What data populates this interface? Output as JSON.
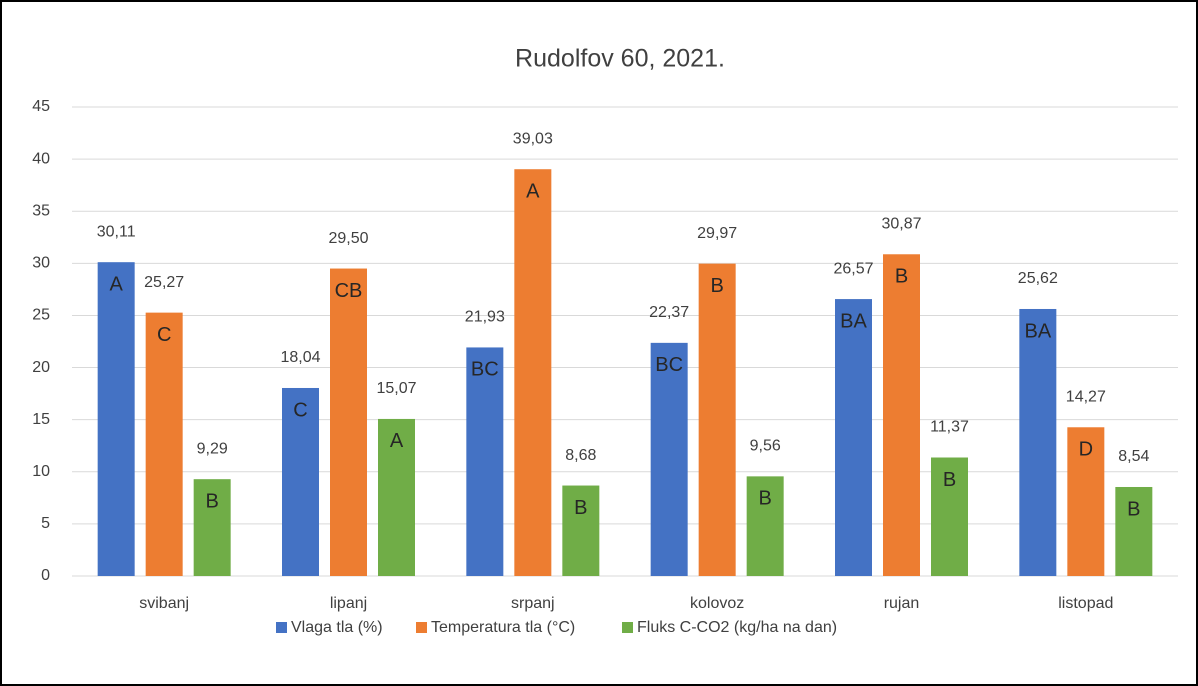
{
  "chart_data": {
    "type": "bar",
    "title": "Rudolfov 60, 2021.",
    "categories": [
      "svibanj",
      "lipanj",
      "srpanj",
      "kolovoz",
      "rujan",
      "listopad"
    ],
    "series": [
      {
        "name": "Vlaga tla (%)",
        "color": "#4472c4",
        "values": [
          30.11,
          18.04,
          21.93,
          22.37,
          26.57,
          25.62
        ],
        "value_labels": [
          "30,11",
          "18,04",
          "21,93",
          "22,37",
          "26,57",
          "25,62"
        ],
        "letters": [
          "A",
          "C",
          "BC",
          "BC",
          "BA",
          "BA"
        ]
      },
      {
        "name": "Temperatura tla (°C)",
        "color": "#ed7d31",
        "values": [
          25.27,
          29.5,
          39.03,
          29.97,
          30.87,
          14.27
        ],
        "value_labels": [
          "25,27",
          "29,50",
          "39,03",
          "29,97",
          "30,87",
          "14,27"
        ],
        "letters": [
          "C",
          "CB",
          "A",
          "B",
          "B",
          "D"
        ]
      },
      {
        "name": "Fluks C-CO2 (kg/ha na dan)",
        "color": "#70ad47",
        "values": [
          9.29,
          15.07,
          8.68,
          9.56,
          11.37,
          8.54
        ],
        "value_labels": [
          "9,29",
          "15,07",
          "8,68",
          "9,56",
          "11,37",
          "8,54"
        ],
        "letters": [
          "B",
          "A",
          "B",
          "B",
          "B",
          "B"
        ]
      }
    ],
    "ylim": [
      0,
      45
    ],
    "yticks": [
      0,
      5,
      10,
      15,
      20,
      25,
      30,
      35,
      40,
      45
    ],
    "grid": true,
    "legend": "bottom"
  }
}
